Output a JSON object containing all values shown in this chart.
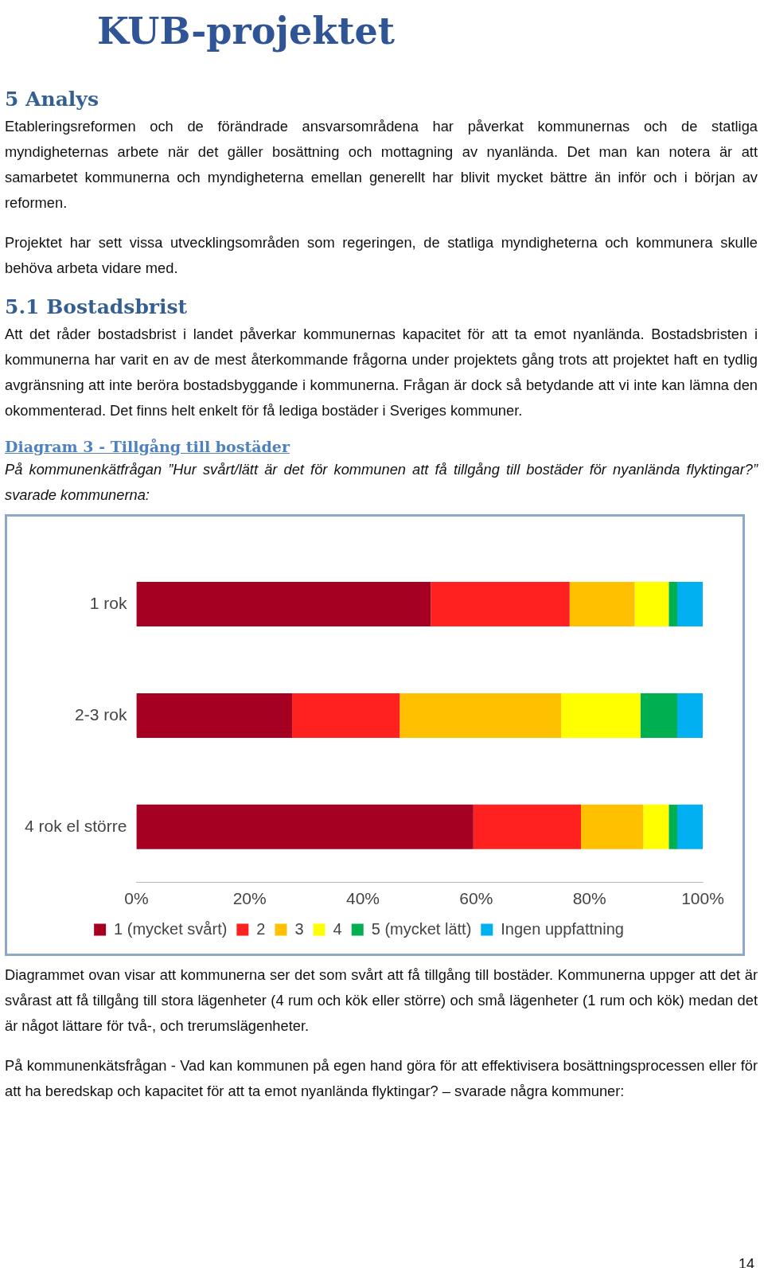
{
  "chart_data": {
    "type": "bar",
    "orientation": "horizontal",
    "stacked": true,
    "title": "Diagram 3 - Tillgång till bostäder",
    "subtitle": "På kommunenkätfrågan ”Hur svårt/lätt är det för kommunen att få tillgång till bostäder för nyanlända flyktingar?” svarade kommunerna:",
    "categories": [
      "1 rok",
      "2-3 rok",
      "4 rok el större"
    ],
    "series": [
      {
        "name": "1 (mycket svårt)",
        "color": "#a50021",
        "values": [
          52,
          27.5,
          59.5
        ]
      },
      {
        "name": "2",
        "color": "#ff2020",
        "values": [
          24.5,
          19,
          19
        ]
      },
      {
        "name": "3",
        "color": "#ffc000",
        "values": [
          11.5,
          28.5,
          11
        ]
      },
      {
        "name": "4",
        "color": "#ffff00",
        "values": [
          6,
          14,
          4.5
        ]
      },
      {
        "name": "5 (mycket lätt)",
        "color": "#00b050",
        "values": [
          1.5,
          6.5,
          1.5
        ]
      },
      {
        "name": "Ingen uppfattning",
        "color": "#00b0f0",
        "values": [
          4.5,
          4.5,
          4.5
        ]
      }
    ],
    "xlim": [
      0,
      100
    ],
    "xticks": [
      {
        "value": 0,
        "label": "0%"
      },
      {
        "value": 20,
        "label": "20%"
      },
      {
        "value": 40,
        "label": "40%"
      },
      {
        "value": 60,
        "label": "60%"
      },
      {
        "value": 80,
        "label": "80%"
      },
      {
        "value": 100,
        "label": "100%"
      }
    ],
    "grid": false,
    "legend": "bottom",
    "annotations": [
      "KUB-projektet",
      "5 Analys",
      "Etableringsreformen och de förändrade ansvarsområdena har påverkat kommunernas och de statliga myndigheternas arbete när det gäller bosättning och mottagning av nyanlända. Det man kan notera är att samarbetet kommunerna och myndigheterna emellan generellt har blivit mycket bättre än inför och i början av reformen.",
      "Projektet har sett vissa utvecklingsområden som regeringen, de statliga myndigheterna och kommunera skulle behöva arbeta vidare med.",
      "5.1 Bostadsbrist",
      "Att det råder bostadsbrist i landet påverkar kommunernas kapacitet för att ta emot nyanlända. Bostadsbristen i kommunerna har varit en av de mest återkommande frågorna under projektets gång trots att projektet haft en tydlig avgränsning att inte beröra bostadsbyggande i kommunerna. Frågan är dock så betydande att vi inte kan lämna den okommenterad. Det finns helt enkelt för få lediga bostäder i Sveriges kommuner.",
      "Diagrammet ovan visar att kommunerna ser det som svårt att få tillgång till bostäder. Kommunerna uppger att det är svårast att få tillgång till stora lägenheter (4 rum och kök eller större) och små lägenheter (1 rum och kök) medan det är något lättare för två-, och trerumslägenheter.",
      "På kommunenkätsfrågan - Vad kan kommunen på egen hand göra för att effektivisera bosättningsprocessen eller för att ha beredskap och kapacitet för att ta emot nyanlända flyktingar? – svarade några kommuner:",
      "14"
    ]
  }
}
